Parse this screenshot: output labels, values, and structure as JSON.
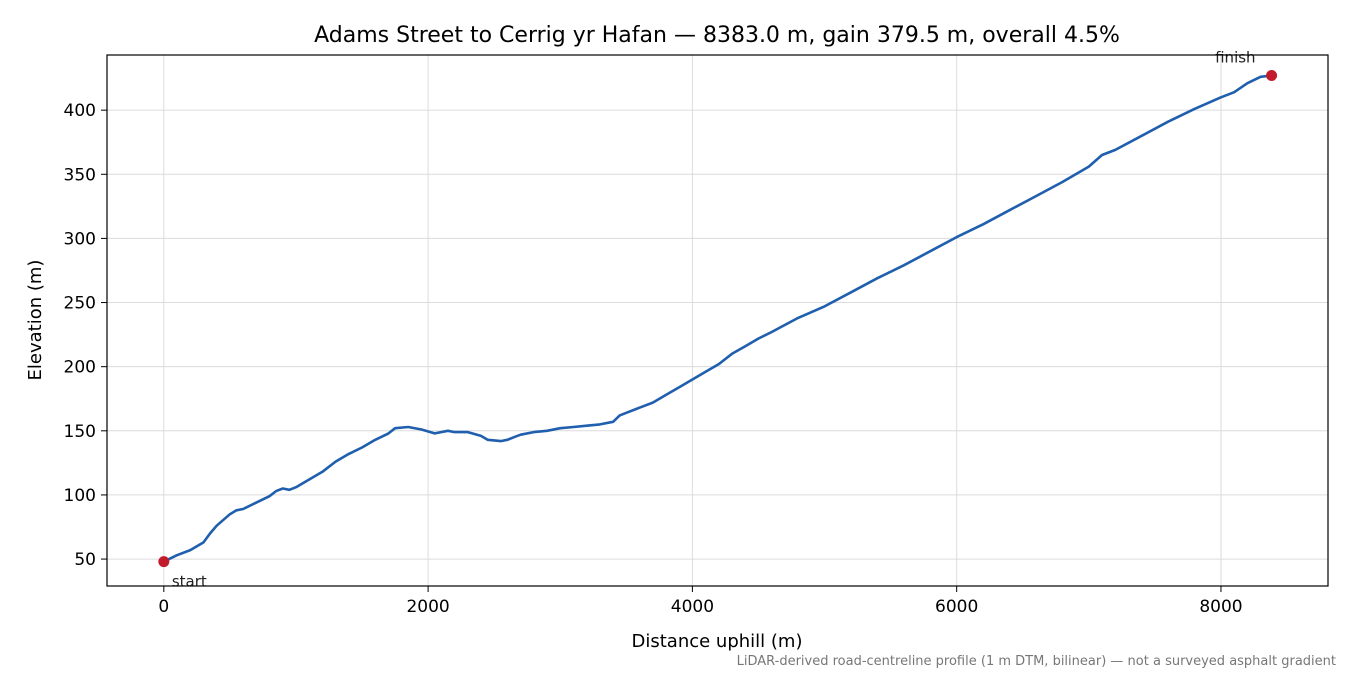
{
  "chart_data": {
    "type": "line",
    "title": "Adams Street to Cerrig yr Hafan — 8383.0 m, gain 379.5 m, overall 4.5%",
    "xlabel": "Distance uphill (m)",
    "ylabel": "Elevation (m)",
    "xlim": [
      -430,
      8810
    ],
    "ylim": [
      29,
      443
    ],
    "xticks": [
      0,
      2000,
      4000,
      6000,
      8000
    ],
    "yticks": [
      50,
      100,
      150,
      200,
      250,
      300,
      350,
      400
    ],
    "grid": true,
    "line_color": "#1f5fae",
    "marker_color": "#c21b2b",
    "series": [
      {
        "x": [
          0,
          100,
          200,
          250,
          300,
          350,
          400,
          500,
          550,
          600,
          700,
          800,
          850,
          900,
          950,
          1000,
          1050,
          1100,
          1200,
          1300,
          1400,
          1500,
          1600,
          1700,
          1750,
          1850,
          1950,
          2050,
          2150,
          2200,
          2300,
          2400,
          2450,
          2550,
          2600,
          2650,
          2700,
          2800,
          2900,
          3000,
          3100,
          3200,
          3300,
          3400,
          3450,
          3500,
          3600,
          3700,
          3800,
          3900,
          4000,
          4100,
          4200,
          4300,
          4400,
          4500,
          4600,
          4800,
          5000,
          5200,
          5400,
          5600,
          5800,
          6000,
          6200,
          6400,
          6600,
          6800,
          7000,
          7100,
          7200,
          7400,
          7600,
          7800,
          8000,
          8100,
          8200,
          8300,
          8383
        ],
        "y": [
          48,
          53,
          57,
          60,
          63,
          70,
          76,
          85,
          88,
          89,
          94,
          99,
          103,
          105,
          104,
          106,
          109,
          112,
          118,
          126,
          132,
          137,
          143,
          148,
          152,
          153,
          151,
          148,
          150,
          149,
          149,
          146,
          143,
          142,
          143,
          145,
          147,
          149,
          150,
          152,
          153,
          154,
          155,
          157,
          162,
          164,
          168,
          172,
          178,
          184,
          190,
          196,
          202,
          210,
          216,
          222,
          227,
          238,
          247,
          258,
          269,
          279,
          290,
          301,
          311,
          322,
          333,
          344,
          356,
          365,
          369,
          380,
          391,
          401,
          410,
          414,
          421,
          426,
          427
        ]
      }
    ],
    "annotations": [
      {
        "text": "start",
        "x": 0,
        "y": 48
      },
      {
        "text": "finish",
        "x": 8383,
        "y": 427
      }
    ],
    "footnote": "LiDAR-derived road-centreline profile (1 m DTM, bilinear) — not a surveyed asphalt gradient"
  }
}
